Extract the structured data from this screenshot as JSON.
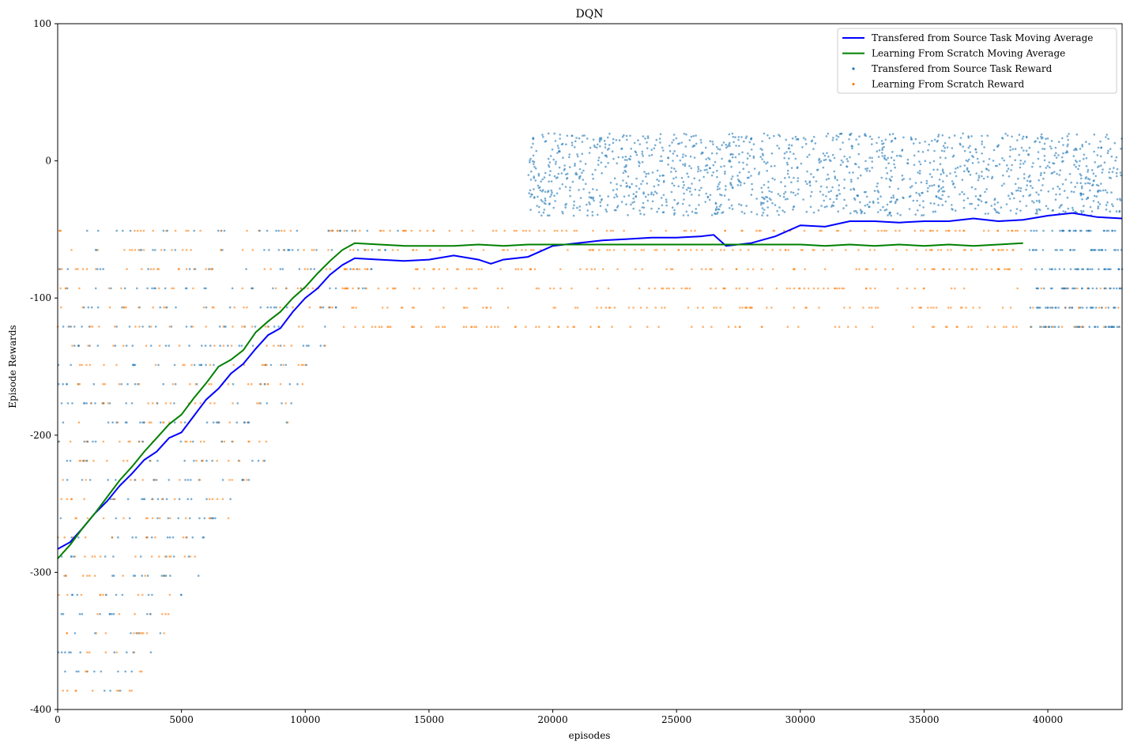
{
  "chart_data": {
    "type": "scatter",
    "title": "DQN",
    "xlabel": "episodes",
    "ylabel": "Episode Rewards",
    "xlim": [
      0,
      43000
    ],
    "ylim": [
      -400,
      100
    ],
    "xticks": [
      0,
      5000,
      10000,
      15000,
      20000,
      25000,
      30000,
      35000,
      40000
    ],
    "yticks": [
      100,
      0,
      -100,
      -200,
      -300,
      -400
    ],
    "grid": false,
    "legend_position": "top-right",
    "legend": [
      {
        "label": "Transfered from Source Task Moving Average",
        "kind": "line",
        "color": "#0000ff"
      },
      {
        "label": "Learning From Scratch Moving Average",
        "kind": "line",
        "color": "#008000"
      },
      {
        "label": "Transfered from Source Task Reward",
        "kind": "marker",
        "color": "#1f77b4"
      },
      {
        "label": "Learning From Scratch Reward",
        "kind": "marker",
        "color": "#ff7f0e"
      }
    ],
    "series": [
      {
        "name": "Transfered from Source Task Moving Average",
        "kind": "line",
        "color": "#0000ff",
        "x": [
          0,
          500,
          1000,
          1500,
          2000,
          2500,
          3000,
          3500,
          4000,
          4500,
          5000,
          5500,
          6000,
          6500,
          7000,
          7500,
          8000,
          8500,
          9000,
          9500,
          10000,
          10500,
          11000,
          11500,
          12000,
          13000,
          14000,
          15000,
          16000,
          17000,
          17500,
          18000,
          19000,
          20000,
          21000,
          22000,
          23000,
          24000,
          25000,
          26000,
          26500,
          27000,
          28000,
          29000,
          30000,
          31000,
          32000,
          33000,
          34000,
          35000,
          36000,
          37000,
          38000,
          39000,
          40000,
          41000,
          42000,
          43000
        ],
        "y": [
          -283,
          -278,
          -268,
          -257,
          -248,
          -237,
          -228,
          -218,
          -212,
          -202,
          -198,
          -186,
          -174,
          -166,
          -155,
          -148,
          -137,
          -127,
          -122,
          -110,
          -100,
          -93,
          -83,
          -76,
          -71,
          -72,
          -73,
          -72,
          -69,
          -72,
          -75,
          -72,
          -70,
          -62,
          -60,
          -58,
          -57,
          -56,
          -56,
          -55,
          -54,
          -62,
          -60,
          -55,
          -47,
          -48,
          -44,
          -44,
          -45,
          -44,
          -44,
          -42,
          -44,
          -43,
          -40,
          -38,
          -41,
          -42
        ]
      },
      {
        "name": "Learning From Scratch Moving Average",
        "kind": "line",
        "color": "#008000",
        "x": [
          0,
          500,
          1000,
          1500,
          2000,
          2500,
          3000,
          3500,
          4000,
          4500,
          5000,
          5500,
          6000,
          6500,
          7000,
          7500,
          8000,
          8500,
          9000,
          9500,
          10000,
          10500,
          11000,
          11500,
          12000,
          13000,
          14000,
          15000,
          16000,
          17000,
          18000,
          19000,
          20000,
          21000,
          22000,
          23000,
          24000,
          25000,
          26000,
          27000,
          28000,
          29000,
          30000,
          31000,
          32000,
          33000,
          34000,
          35000,
          36000,
          37000,
          38000,
          39000
        ],
        "y": [
          -290,
          -280,
          -268,
          -257,
          -245,
          -233,
          -223,
          -212,
          -202,
          -192,
          -185,
          -173,
          -162,
          -150,
          -145,
          -138,
          -125,
          -117,
          -110,
          -100,
          -92,
          -82,
          -73,
          -65,
          -60,
          -61,
          -62,
          -62,
          -62,
          -61,
          -62,
          -61,
          -61,
          -61,
          -61,
          -61,
          -61,
          -61,
          -61,
          -61,
          -61,
          -61,
          -61,
          -62,
          -61,
          -62,
          -61,
          -62,
          -61,
          -62,
          -61,
          -60
        ]
      }
    ],
    "scatter_series": [
      {
        "name": "Transfered from Source Task Reward",
        "color": "#1f77b4",
        "description": "dense horizontal bands at discrete reward levels (-386 to -51) spanning from 0 to the moving-average transition, continuing past ~39000 at levels -51 to -121; dense cloud between -40 and +20 from ~19000 to 43000"
      },
      {
        "name": "Learning From Scratch Reward",
        "color": "#ff7f0e",
        "description": "dense horizontal bands at discrete reward levels from -386 to -51, ending near 39200 episodes"
      }
    ]
  }
}
